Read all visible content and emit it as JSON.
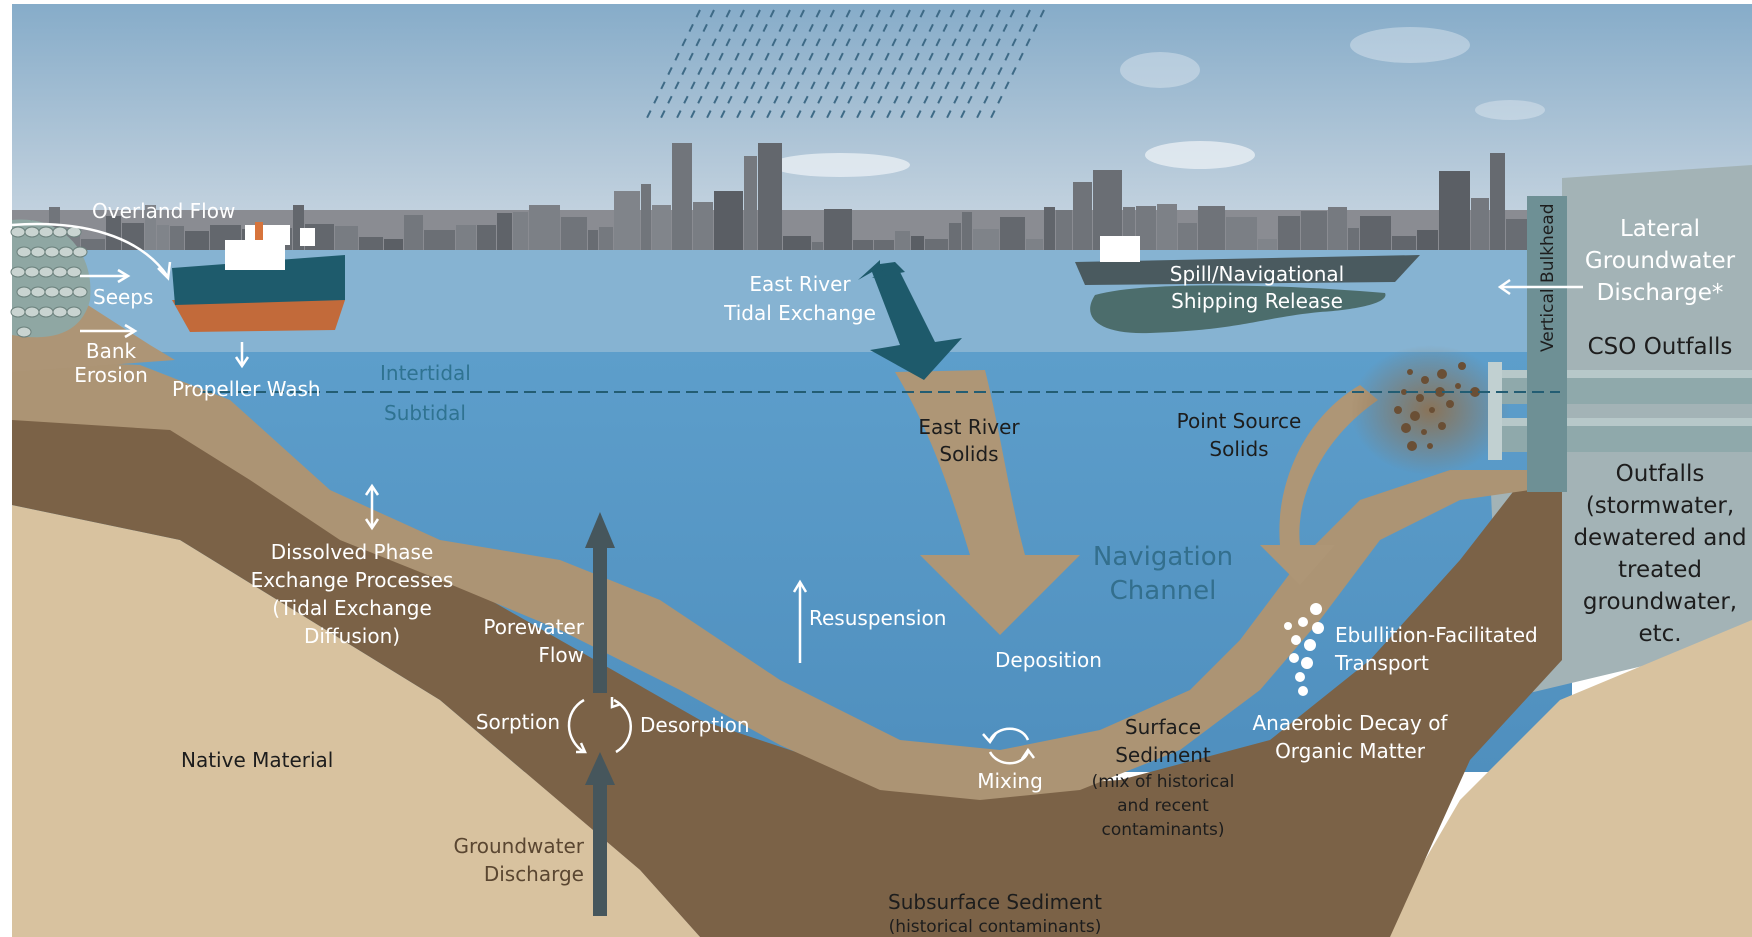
{
  "colors": {
    "sky_top": "#8fb3cf",
    "sky_bottom": "#c7d6e2",
    "water_surface": "#8bb6d3",
    "water_deep": "#5b9ac5",
    "sediment_light": "#ae9676",
    "sediment_dark": "#7a6146",
    "native_material": "#d9c3a0",
    "arrow_teal": "#1f5566",
    "arrow_gray": "#47565c",
    "bulkhead": "#6f9196",
    "right_panel": "#a8b6b8"
  },
  "labels": {
    "overland_flow": "Overland Flow",
    "seeps": "Seeps",
    "bank_erosion": [
      "Bank",
      "Erosion"
    ],
    "propeller_wash": "Propeller Wash",
    "intertidal": "Intertidal",
    "subtidal": "Subtidal",
    "dissolved_phase": [
      "Dissolved Phase",
      "Exchange Processes",
      "(Tidal Exchange",
      "Diffusion)"
    ],
    "porewater_flow": [
      "Porewater",
      "Flow"
    ],
    "sorption": "Sorption",
    "desorption": "Desorption",
    "native_material": "Native Material",
    "groundwater_discharge": [
      "Groundwater",
      "Discharge"
    ],
    "east_river_tidal": [
      "East River",
      "Tidal Exchange"
    ],
    "east_river_solids": [
      "East River",
      "Solids"
    ],
    "resuspension": "Resuspension",
    "deposition": "Deposition",
    "navigation_channel": [
      "Navigation",
      "Channel"
    ],
    "mixing": "Mixing",
    "surface_sediment": [
      "Surface",
      "Sediment"
    ],
    "surface_sediment_note": [
      "(mix of historical",
      "and recent",
      "contaminants)"
    ],
    "subsurface_sediment": "Subsurface Sediment",
    "subsurface_note": "(historical contaminants)",
    "spill": [
      "Spill/Navigational",
      "Shipping Release"
    ],
    "point_source": [
      "Point Source",
      "Solids"
    ],
    "ebullition": [
      "Ebullition-Facilitated",
      "Transport"
    ],
    "anaerobic": [
      "Anaerobic Decay of",
      "Organic Matter"
    ],
    "vertical_bulkhead": "Vertical Bulkhead",
    "lateral_groundwater": [
      "Lateral",
      "Groundwater",
      "Discharge*"
    ],
    "cso_outfalls": "CSO Outfalls",
    "outfalls": [
      "Outfalls",
      "(stormwater,",
      "dewatered and",
      "treated",
      "groundwater,",
      "etc."
    ]
  }
}
